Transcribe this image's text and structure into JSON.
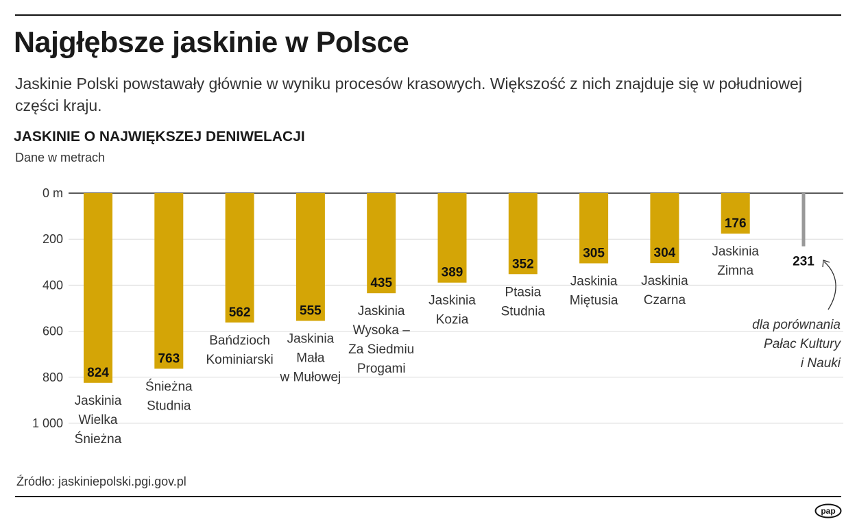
{
  "title": "Najgłębsze jaskinie w Polsce",
  "subtitle": "Jaskinie Polski powstawały głównie w wyniku procesów krasowych. Większość z nich znajduje się w południowej części kraju.",
  "source": "Źródło: jaskiniepolski.pgi.gov.pl",
  "logo": "pap",
  "chart_data": {
    "type": "bar",
    "title": "JASKINIE O NAJWIĘKSZEJ DENIWELACJI",
    "unit_note": "Dane w metrach",
    "orientation": "downward",
    "ylim": [
      0,
      1000
    ],
    "yticks": [
      "0 m",
      "200",
      "400",
      "600",
      "800",
      "1 000"
    ],
    "ytick_values": [
      0,
      200,
      400,
      600,
      800,
      1000
    ],
    "grid": true,
    "bar_color": "#d4a506",
    "categories": [
      [
        "Jaskinia",
        "Wielka",
        "Śnieżna"
      ],
      [
        "Śnieżna",
        "Studnia"
      ],
      [
        "Bańdzioch",
        "Kominiarski"
      ],
      [
        "Jaskinia",
        "Mała",
        "w Mułowej"
      ],
      [
        "Jaskinia",
        "Wysoka –",
        "Za Siedmiu",
        "Progami"
      ],
      [
        "Jaskinia",
        "Kozia"
      ],
      [
        "Ptasia",
        "Studnia"
      ],
      [
        "Jaskinia",
        "Miętusia"
      ],
      [
        "Jaskinia",
        "Czarna"
      ],
      [
        "Jaskinia",
        "Zimna"
      ]
    ],
    "values": [
      824,
      763,
      562,
      555,
      435,
      389,
      352,
      305,
      304,
      176
    ],
    "comparison": {
      "value": 231,
      "color": "#999999",
      "annotation": [
        "dla porównania",
        "Pałac Kultury",
        "i Nauki"
      ]
    }
  }
}
